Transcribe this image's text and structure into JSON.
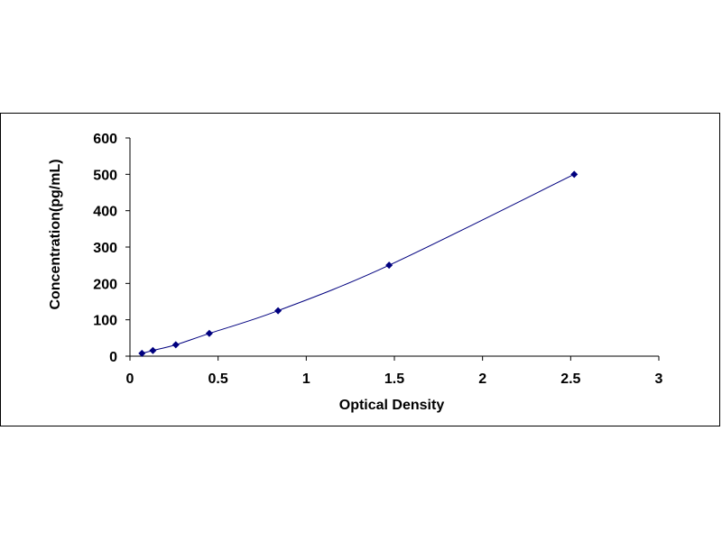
{
  "chart_data": {
    "type": "scatter",
    "title": "",
    "xlabel": "Optical Density",
    "ylabel": "Concentration(pg/mL)",
    "xlim": [
      0,
      3
    ],
    "ylim": [
      0,
      600
    ],
    "x_ticks": [
      "0",
      "0.5",
      "1",
      "1.5",
      "2",
      "2.5",
      "3"
    ],
    "y_ticks": [
      "0",
      "100",
      "200",
      "300",
      "400",
      "500",
      "600"
    ],
    "grid": false,
    "legend": "none",
    "series": [
      {
        "x": [
          0.068,
          0.13,
          0.26,
          0.45,
          0.84,
          1.47,
          2.52
        ],
        "y": [
          7.8,
          15.6,
          31.25,
          62.5,
          125,
          250,
          500
        ],
        "marker": "diamond",
        "trendline": "smooth"
      }
    ],
    "colors": {
      "marker": "#00007f",
      "curve": "#00007f",
      "axis": "#000000"
    }
  }
}
